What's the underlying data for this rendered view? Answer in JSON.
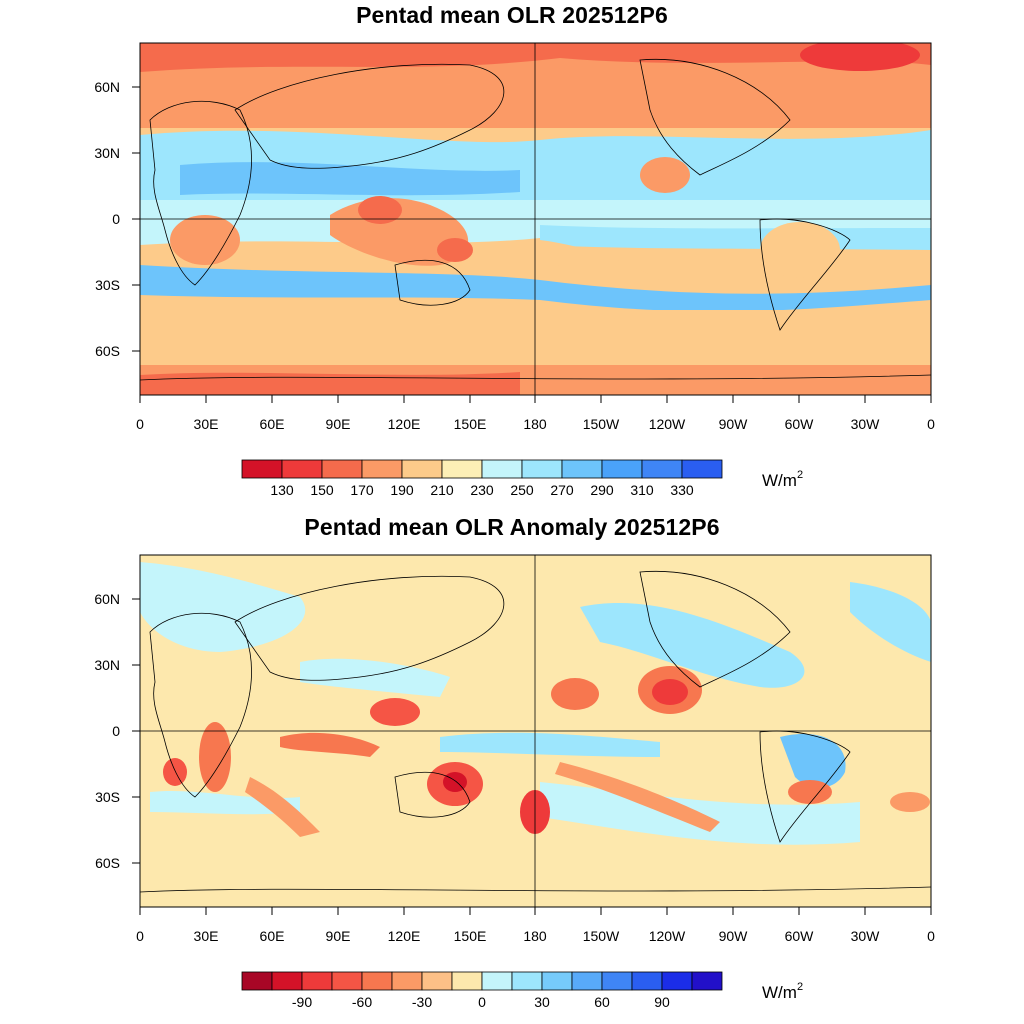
{
  "colors": {
    "mean_scale": [
      "#d41228",
      "#ee3a3a",
      "#f56b4c",
      "#fb9a66",
      "#fdcb8a",
      "#fdefb6",
      "#c4f5fb",
      "#9de6fd",
      "#6dc4fb",
      "#4aa2f9",
      "#3f85f6",
      "#2a5ef1"
    ],
    "anomaly_scale": [
      "#a80626",
      "#d41228",
      "#ee3a3a",
      "#f55545",
      "#f7774f",
      "#fb9a66",
      "#fdc087",
      "#fde8ad",
      "#c4f5fb",
      "#9de6fd",
      "#76cbfb",
      "#58aaf9",
      "#3f85f6",
      "#2a5ef1",
      "#1b2de8",
      "#2210c9"
    ],
    "land_outline": "#000000"
  },
  "maps": [
    {
      "id": "mean",
      "title": "Pentad mean OLR 202512P6",
      "lon_labels": [
        "0",
        "30E",
        "60E",
        "90E",
        "120E",
        "150E",
        "180",
        "150W",
        "120W",
        "90W",
        "60W",
        "30W",
        "0"
      ],
      "lat_labels": [
        "60N",
        "30N",
        "0",
        "30S",
        "60S"
      ],
      "colorbar": {
        "labels": [
          "130",
          "150",
          "170",
          "190",
          "210",
          "230",
          "250",
          "270",
          "290",
          "310",
          "330"
        ],
        "unit": "W/m",
        "unit_exp": "2"
      }
    },
    {
      "id": "anomaly",
      "title": "Pentad mean OLR Anomaly 202512P6",
      "lon_labels": [
        "0",
        "30E",
        "60E",
        "90E",
        "120E",
        "150E",
        "180",
        "150W",
        "120W",
        "90W",
        "60W",
        "30W",
        "0"
      ],
      "lat_labels": [
        "60N",
        "30N",
        "0",
        "30S",
        "60S"
      ],
      "colorbar": {
        "labels": [
          "-90",
          "-60",
          "-30",
          "0",
          "30",
          "60",
          "90"
        ],
        "unit": "W/m",
        "unit_exp": "2"
      }
    }
  ]
}
